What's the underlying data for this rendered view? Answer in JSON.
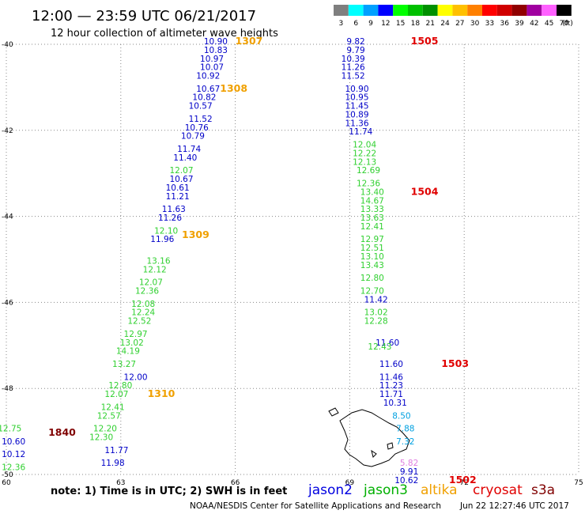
{
  "header": {
    "title": "12:00 — 23:59 UTC 06/21/2017",
    "subtitle": "12 hour collection of altimeter wave heights"
  },
  "colorbar": {
    "bins": [
      {
        "label": "3",
        "color": "#7f7f7f"
      },
      {
        "label": "6",
        "color": "#00ffff"
      },
      {
        "label": "9",
        "color": "#00a0ff"
      },
      {
        "label": "12",
        "color": "#0000ff"
      },
      {
        "label": "15",
        "color": "#00ff00"
      },
      {
        "label": "18",
        "color": "#00c000"
      },
      {
        "label": "21",
        "color": "#009000"
      },
      {
        "label": "24",
        "color": "#ffff00"
      },
      {
        "label": "27",
        "color": "#ffc000"
      },
      {
        "label": "30",
        "color": "#ff8000"
      },
      {
        "label": "33",
        "color": "#ff0000"
      },
      {
        "label": "36",
        "color": "#d00000"
      },
      {
        "label": "39",
        "color": "#900000"
      },
      {
        "label": "42",
        "color": "#a000a0"
      },
      {
        "label": "45",
        "color": "#ff60ff"
      },
      {
        "label": "70",
        "color": "#000000"
      }
    ],
    "unit": "(ft)"
  },
  "chart_data": {
    "type": "scatter",
    "xlim": [
      60,
      75
    ],
    "ylim": [
      -50,
      -40
    ],
    "x_ticks": [
      "60",
      "63",
      "66",
      "69",
      "72",
      "75"
    ],
    "y_ticks": [
      "-40",
      "-42",
      "-44",
      "-46",
      "-48",
      "-50"
    ],
    "grid": true,
    "series": [
      {
        "name": "jason2",
        "color": "#0000c8",
        "points": [
          {
            "x": 65.8,
            "y": -40.0,
            "label": "10.90"
          },
          {
            "x": 65.8,
            "y": -40.2,
            "label": "10.83"
          },
          {
            "x": 65.7,
            "y": -40.4,
            "label": "10.97"
          },
          {
            "x": 65.7,
            "y": -40.6,
            "label": "10.07"
          },
          {
            "x": 65.6,
            "y": -40.8,
            "label": "10.92"
          },
          {
            "x": 65.6,
            "y": -41.1,
            "label": "10.67"
          },
          {
            "x": 65.5,
            "y": -41.3,
            "label": "10.82"
          },
          {
            "x": 65.4,
            "y": -41.5,
            "label": "10.57"
          },
          {
            "x": 65.4,
            "y": -41.8,
            "label": "11.52"
          },
          {
            "x": 65.3,
            "y": -42.0,
            "label": "10.76"
          },
          {
            "x": 65.2,
            "y": -42.2,
            "label": "10.79"
          },
          {
            "x": 65.1,
            "y": -42.5,
            "label": "11.74"
          },
          {
            "x": 65.0,
            "y": -42.7,
            "label": "11.40"
          },
          {
            "x": 64.9,
            "y": -43.2,
            "label": "10.67"
          },
          {
            "x": 64.8,
            "y": -43.4,
            "label": "10.61"
          },
          {
            "x": 64.8,
            "y": -43.6,
            "label": "11.21"
          },
          {
            "x": 64.7,
            "y": -43.9,
            "label": "11.63"
          },
          {
            "x": 64.6,
            "y": -44.1,
            "label": "11.26"
          },
          {
            "x": 64.4,
            "y": -44.6,
            "label": "11.96"
          },
          {
            "x": 63.7,
            "y": -47.8,
            "label": "12.00"
          },
          {
            "x": 63.2,
            "y": -49.5,
            "label": "11.77"
          },
          {
            "x": 63.1,
            "y": -49.8,
            "label": "11.98"
          },
          {
            "x": 69.4,
            "y": -40.0,
            "label": "9.82"
          },
          {
            "x": 69.4,
            "y": -40.2,
            "label": "9.79"
          },
          {
            "x": 69.4,
            "y": -40.4,
            "label": "10.39"
          },
          {
            "x": 69.4,
            "y": -40.6,
            "label": "11.26"
          },
          {
            "x": 69.4,
            "y": -40.8,
            "label": "11.52"
          },
          {
            "x": 69.5,
            "y": -41.1,
            "label": "10.90"
          },
          {
            "x": 69.5,
            "y": -41.3,
            "label": "10.95"
          },
          {
            "x": 69.5,
            "y": -41.5,
            "label": "11.45"
          },
          {
            "x": 69.5,
            "y": -41.7,
            "label": "10.89"
          },
          {
            "x": 69.5,
            "y": -41.9,
            "label": "11.36"
          },
          {
            "x": 69.6,
            "y": -42.1,
            "label": "11.74"
          },
          {
            "x": 70.0,
            "y": -46.0,
            "label": "11.42"
          },
          {
            "x": 70.3,
            "y": -47.0,
            "label": "11.60"
          },
          {
            "x": 70.4,
            "y": -47.5,
            "label": "11.60"
          },
          {
            "x": 70.4,
            "y": -47.8,
            "label": "11.46"
          },
          {
            "x": 70.4,
            "y": -48.0,
            "label": "11.23"
          },
          {
            "x": 70.4,
            "y": -48.2,
            "label": "11.71"
          },
          {
            "x": 70.5,
            "y": -48.4,
            "label": "10.31"
          },
          {
            "x": 70.8,
            "y": -50.0,
            "label": "9.91"
          },
          {
            "x": 70.8,
            "y": -50.2,
            "label": "10.62"
          },
          {
            "x": 60.5,
            "y": -49.3,
            "label": "10.60"
          },
          {
            "x": 60.5,
            "y": -49.6,
            "label": "10.12"
          }
        ]
      },
      {
        "name": "jason3",
        "color": "#30d030",
        "points": [
          {
            "x": 64.9,
            "y": -43.0,
            "label": "12.07"
          },
          {
            "x": 64.5,
            "y": -44.4,
            "label": "12.10"
          },
          {
            "x": 64.3,
            "y": -45.1,
            "label": "13.16"
          },
          {
            "x": 64.2,
            "y": -45.3,
            "label": "12.12"
          },
          {
            "x": 64.1,
            "y": -45.6,
            "label": "12.07"
          },
          {
            "x": 64.0,
            "y": -45.8,
            "label": "12.36"
          },
          {
            "x": 63.9,
            "y": -46.1,
            "label": "12.08"
          },
          {
            "x": 63.9,
            "y": -46.3,
            "label": "12.24"
          },
          {
            "x": 63.8,
            "y": -46.5,
            "label": "12.52"
          },
          {
            "x": 63.7,
            "y": -46.8,
            "label": "12.97"
          },
          {
            "x": 63.6,
            "y": -47.0,
            "label": "13.02"
          },
          {
            "x": 63.5,
            "y": -47.2,
            "label": "14.19"
          },
          {
            "x": 63.4,
            "y": -47.5,
            "label": "13.27"
          },
          {
            "x": 63.3,
            "y": -48.0,
            "label": "12.80"
          },
          {
            "x": 63.2,
            "y": -48.2,
            "label": "12.07"
          },
          {
            "x": 63.1,
            "y": -48.5,
            "label": "12.41"
          },
          {
            "x": 63.0,
            "y": -48.7,
            "label": "12.57"
          },
          {
            "x": 62.9,
            "y": -49.0,
            "label": "12.20"
          },
          {
            "x": 62.8,
            "y": -49.2,
            "label": "12.30"
          },
          {
            "x": 69.7,
            "y": -42.4,
            "label": "12.04"
          },
          {
            "x": 69.7,
            "y": -42.6,
            "label": "12.22"
          },
          {
            "x": 69.7,
            "y": -42.8,
            "label": "12.13"
          },
          {
            "x": 69.8,
            "y": -43.0,
            "label": "12.69"
          },
          {
            "x": 69.8,
            "y": -43.3,
            "label": "12.36"
          },
          {
            "x": 69.9,
            "y": -43.5,
            "label": "13.40"
          },
          {
            "x": 69.9,
            "y": -43.7,
            "label": "14.67"
          },
          {
            "x": 69.9,
            "y": -43.9,
            "label": "13.33"
          },
          {
            "x": 69.9,
            "y": -44.1,
            "label": "13.63"
          },
          {
            "x": 69.9,
            "y": -44.3,
            "label": "12.41"
          },
          {
            "x": 69.9,
            "y": -44.6,
            "label": "12.97"
          },
          {
            "x": 69.9,
            "y": -44.8,
            "label": "12.51"
          },
          {
            "x": 69.9,
            "y": -45.0,
            "label": "13.10"
          },
          {
            "x": 69.9,
            "y": -45.2,
            "label": "13.43"
          },
          {
            "x": 69.9,
            "y": -45.5,
            "label": "12.80"
          },
          {
            "x": 69.9,
            "y": -45.8,
            "label": "12.70"
          },
          {
            "x": 70.0,
            "y": -46.3,
            "label": "13.02"
          },
          {
            "x": 70.0,
            "y": -46.5,
            "label": "12.28"
          },
          {
            "x": 70.1,
            "y": -47.1,
            "label": "12.43"
          },
          {
            "x": 60.4,
            "y": -49.0,
            "label": "12.75"
          },
          {
            "x": 60.5,
            "y": -49.9,
            "label": "12.36"
          }
        ]
      },
      {
        "name": "cyan-bin",
        "color": "#00a0e0",
        "points": [
          {
            "x": 70.6,
            "y": -48.7,
            "label": "8.50"
          },
          {
            "x": 70.7,
            "y": -49.0,
            "label": "7.88"
          },
          {
            "x": 70.7,
            "y": -49.3,
            "label": "7.32"
          }
        ]
      },
      {
        "name": "pink-bin",
        "color": "#e080e0",
        "points": [
          {
            "x": 70.8,
            "y": -49.8,
            "label": "5.82"
          }
        ]
      }
    ],
    "time_labels": [
      {
        "x": 66.0,
        "y": -40.0,
        "label": "1307",
        "color": "#f0a000"
      },
      {
        "x": 65.6,
        "y": -41.1,
        "label": "1308",
        "color": "#f0a000"
      },
      {
        "x": 64.6,
        "y": -44.5,
        "label": "1309",
        "color": "#f0a000"
      },
      {
        "x": 63.7,
        "y": -48.2,
        "label": "1310",
        "color": "#f0a000"
      },
      {
        "x": 70.6,
        "y": -40.0,
        "label": "1505",
        "color": "#e00000"
      },
      {
        "x": 70.6,
        "y": -43.5,
        "label": "1504",
        "color": "#e00000"
      },
      {
        "x": 71.4,
        "y": -47.5,
        "label": "1503",
        "color": "#e00000"
      },
      {
        "x": 71.6,
        "y": -50.2,
        "label": "1502",
        "color": "#e00000"
      },
      {
        "x": 61.1,
        "y": -49.1,
        "label": "1840",
        "color": "#800000"
      }
    ]
  },
  "footer": {
    "note": "note: 1) Time is in UTC; 2) SWH is in feet",
    "legend": [
      {
        "label": "jason2",
        "color": "#0000e0"
      },
      {
        "label": "jason3",
        "color": "#00b000"
      },
      {
        "label": "altika",
        "color": "#f0a000"
      },
      {
        "label": "cryosat",
        "color": "#e00000"
      },
      {
        "label": "s3a",
        "color": "#800000"
      }
    ],
    "credit": "NOAA/NESDIS Center for Satellite Applications and Research",
    "timestamp": "Jun 22 12:27:46 UTC 2017"
  }
}
